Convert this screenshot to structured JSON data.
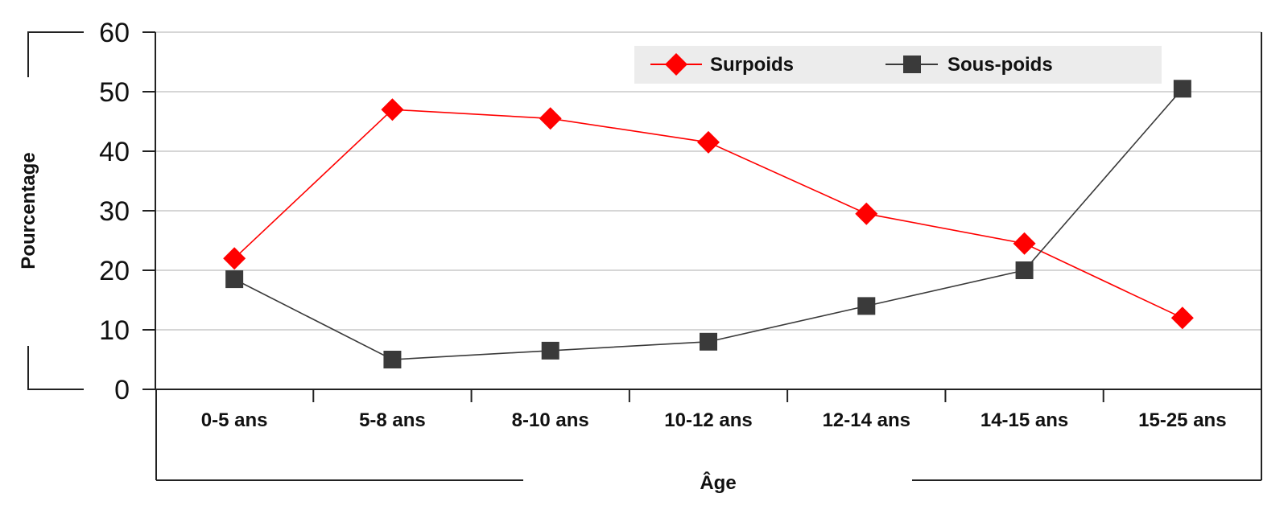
{
  "chart_data": {
    "type": "line",
    "categories": [
      "0-5 ans",
      "5-8 ans",
      "8-10 ans",
      "10-12 ans",
      "12-14 ans",
      "14-15 ans",
      "15-25 ans"
    ],
    "series": [
      {
        "name": "Surpoids",
        "values": [
          22,
          47,
          45.5,
          41.5,
          29.5,
          24.5,
          12
        ],
        "color": "#ff0000",
        "marker": "diamond"
      },
      {
        "name": "Sous-poids",
        "values": [
          18.5,
          5,
          6.5,
          8,
          14,
          20,
          50.5
        ],
        "color": "#3a3a3a",
        "marker": "square"
      }
    ],
    "yticks": [
      "0",
      "10",
      "20",
      "30",
      "40",
      "50",
      "60"
    ],
    "ylim": [
      0,
      60
    ],
    "xlabel": "Âge",
    "ylabel": "Pourcentage",
    "grid": true,
    "legend_position": "top"
  }
}
